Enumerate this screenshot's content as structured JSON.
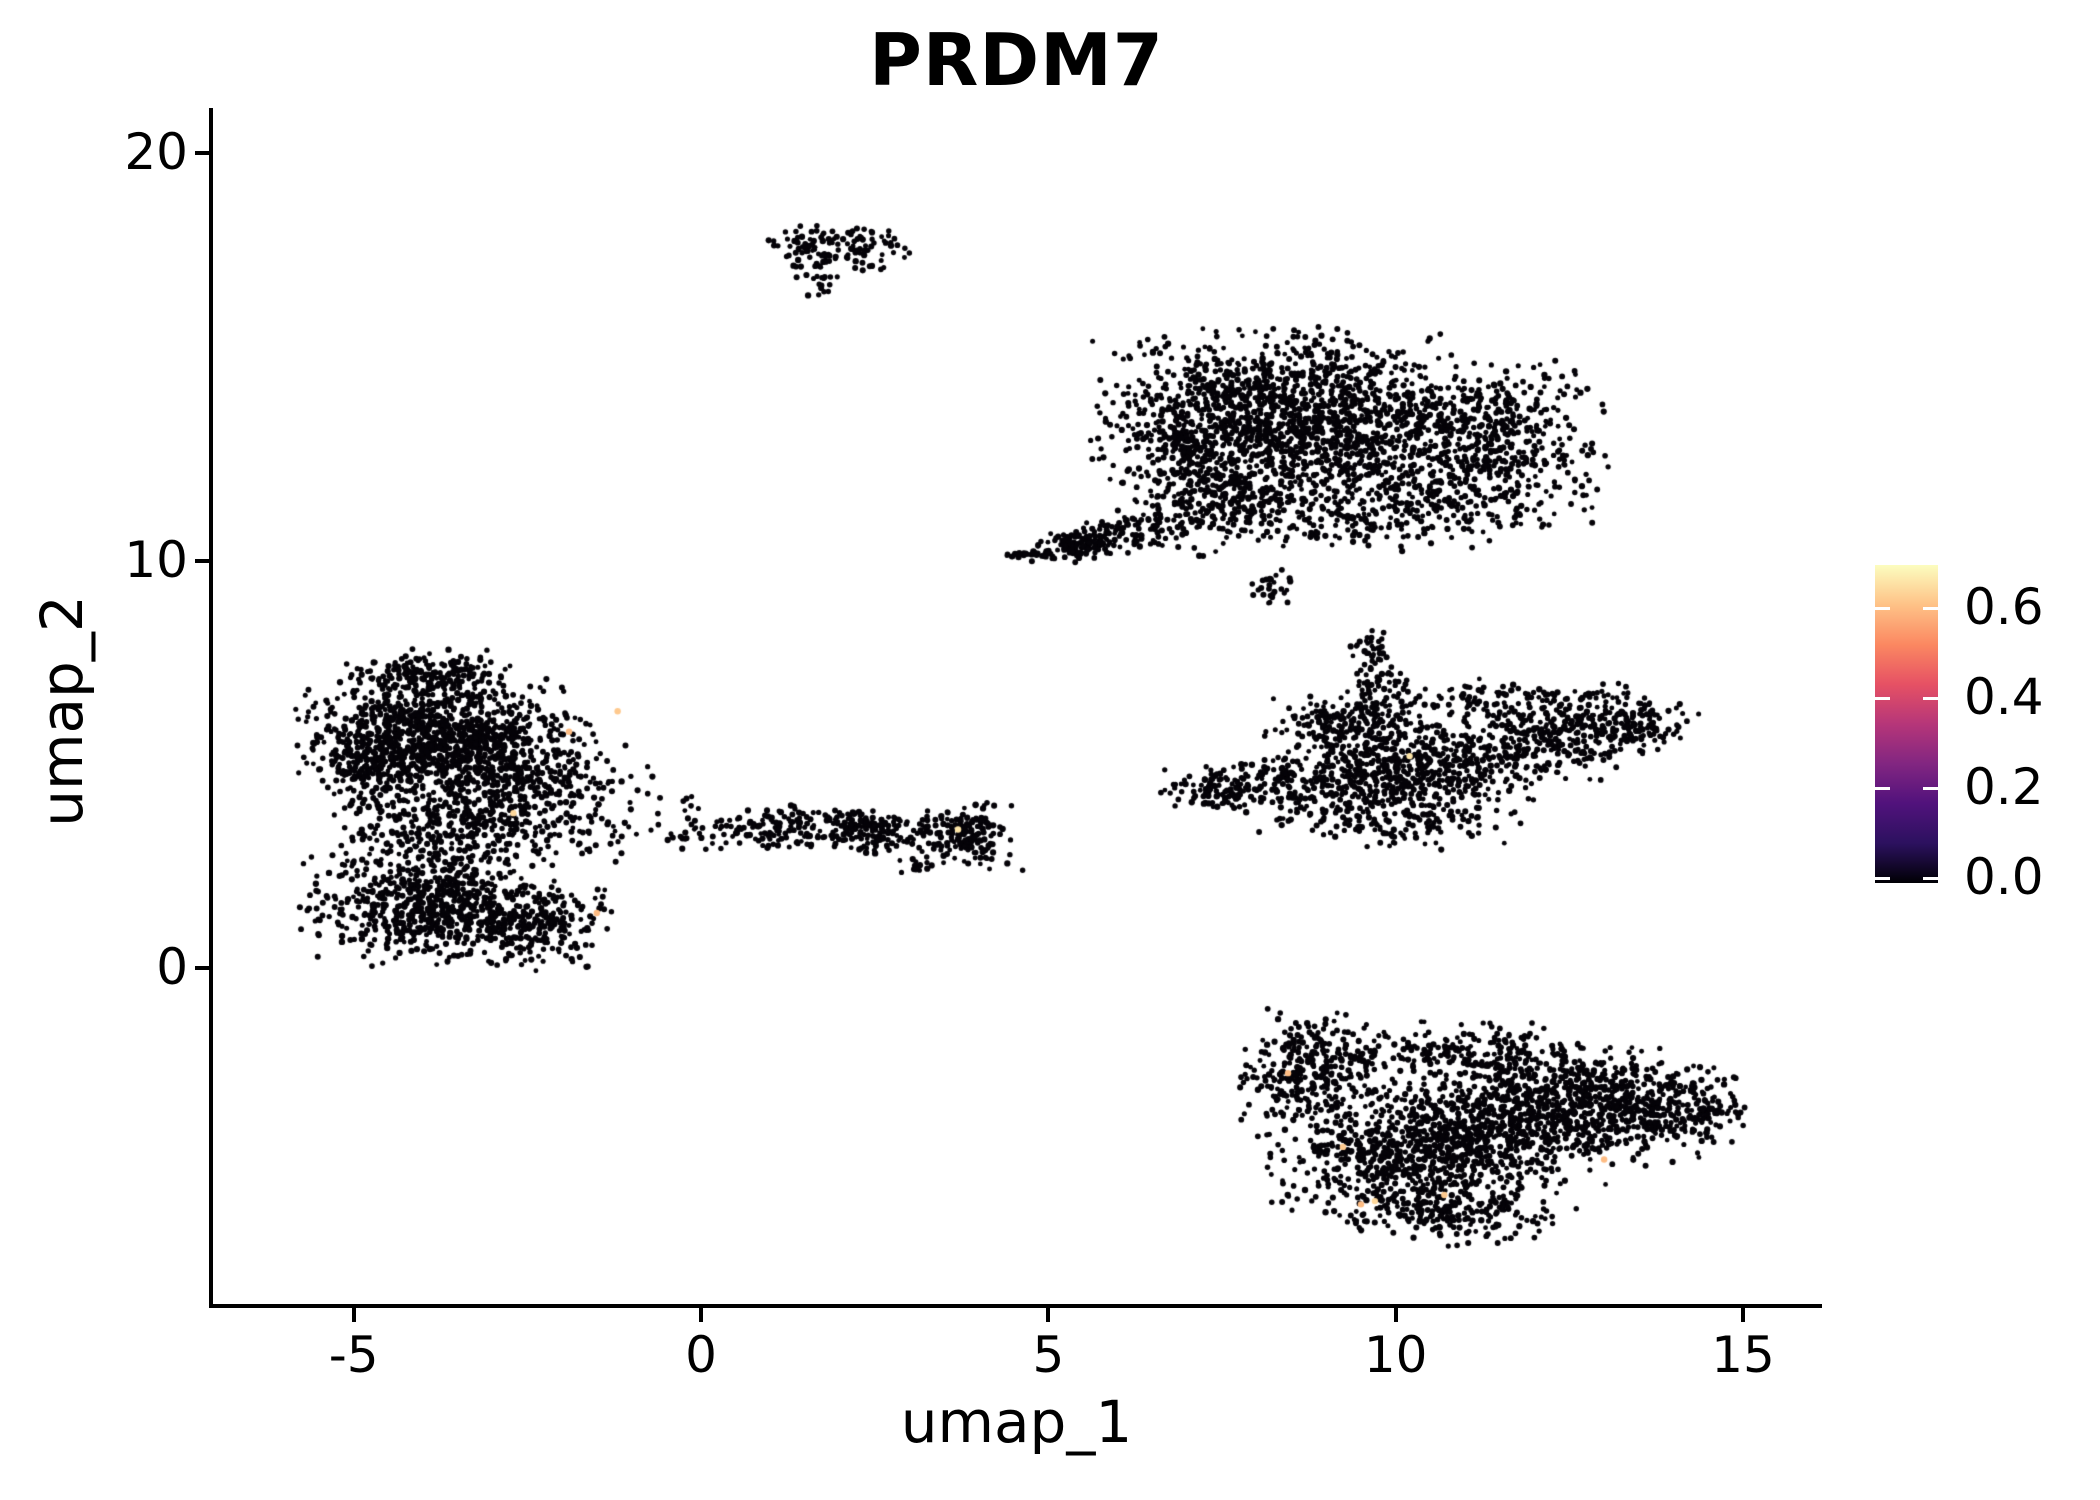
{
  "chart_data": {
    "type": "scatter",
    "title": "PRDM7",
    "xlabel": "umap_1",
    "ylabel": "umap_2",
    "xlim": [
      -7.1,
      16.1
    ],
    "ylim": [
      -8.3,
      21.1
    ],
    "grid": false,
    "x_ticks": [
      {
        "label": "-5",
        "value": -5
      },
      {
        "label": "0",
        "value": 0
      },
      {
        "label": "5",
        "value": 5
      },
      {
        "label": "10",
        "value": 10
      },
      {
        "label": "15",
        "value": 15
      }
    ],
    "y_ticks": [
      {
        "label": "0",
        "value": 0
      },
      {
        "label": "10",
        "value": 10
      },
      {
        "label": "20",
        "value": 20
      }
    ],
    "colorbar": {
      "position": "right",
      "value_range": [
        0,
        0.696
      ],
      "ticks": [
        {
          "label": "0.0",
          "value": 0.0
        },
        {
          "label": "0.2",
          "value": 0.2
        },
        {
          "label": "0.4",
          "value": 0.4
        },
        {
          "label": "0.6",
          "value": 0.6
        }
      ],
      "colormap": "magma",
      "stops": [
        {
          "pos": 0.0,
          "color": "#000004"
        },
        {
          "pos": 0.125,
          "color": "#2C115F"
        },
        {
          "pos": 0.25,
          "color": "#51127C"
        },
        {
          "pos": 0.375,
          "color": "#822681"
        },
        {
          "pos": 0.5,
          "color": "#B63679"
        },
        {
          "pos": 0.625,
          "color": "#E65164"
        },
        {
          "pos": 0.75,
          "color": "#FB8861"
        },
        {
          "pos": 0.875,
          "color": "#FEC287"
        },
        {
          "pos": 1.0,
          "color": "#FCFDBF"
        }
      ]
    },
    "point_color_zero": "#050308",
    "point_radius_px": 2.8,
    "clusters": [
      {
        "name": "top-small",
        "blobs": [
          {
            "x": 1.95,
            "y": 17.75,
            "sx": 0.5,
            "sy": 0.25,
            "rot": 0,
            "n": 110
          },
          {
            "x": 1.72,
            "y": 17.05,
            "sx": 0.18,
            "sy": 0.3,
            "rot": 0,
            "n": 30
          },
          {
            "x": 2.45,
            "y": 17.2,
            "sx": 0.15,
            "sy": 0.12,
            "rot": 0,
            "n": 8
          }
        ]
      },
      {
        "name": "top-right-large",
        "blobs": [
          {
            "x": 8.3,
            "y": 13.9,
            "sx": 1.2,
            "sy": 0.8,
            "rot": 0,
            "n": 850
          },
          {
            "x": 9.9,
            "y": 12.7,
            "sx": 1.4,
            "sy": 0.95,
            "rot": 0,
            "n": 850
          },
          {
            "x": 7.3,
            "y": 12.4,
            "sx": 0.75,
            "sy": 0.85,
            "rot": 0,
            "n": 400
          },
          {
            "x": 11.5,
            "y": 12.9,
            "sx": 0.65,
            "sy": 0.9,
            "rot": 0,
            "n": 260
          },
          {
            "x": 9.2,
            "y": 11.1,
            "sx": 1.4,
            "sy": 0.45,
            "rot": 0,
            "n": 230
          },
          {
            "x": 7.6,
            "y": 11.7,
            "sx": 0.5,
            "sy": 0.5,
            "rot": 0,
            "n": 60
          },
          {
            "x": 5.9,
            "y": 10.6,
            "sx": 0.6,
            "sy": 0.22,
            "rot": 18,
            "n": 140
          },
          {
            "x": 5.35,
            "y": 10.35,
            "sx": 0.22,
            "sy": 0.18,
            "rot": 0,
            "n": 60
          },
          {
            "x": 4.62,
            "y": 10.15,
            "sx": 0.18,
            "sy": 0.04,
            "rot": 0,
            "n": 22
          }
        ]
      },
      {
        "name": "tiny-mid",
        "blobs": [
          {
            "x": 8.2,
            "y": 9.35,
            "sx": 0.16,
            "sy": 0.2,
            "rot": 0,
            "n": 26
          }
        ]
      },
      {
        "name": "middle-right",
        "blobs": [
          {
            "x": 9.72,
            "y": 7.0,
            "sx": 0.2,
            "sy": 0.5,
            "rot": 0,
            "n": 65
          },
          {
            "x": 9.6,
            "y": 7.95,
            "sx": 0.13,
            "sy": 0.22,
            "rot": 0,
            "n": 14
          },
          {
            "x": 9.3,
            "y": 5.95,
            "sx": 0.5,
            "sy": 0.45,
            "rot": 0,
            "n": 170
          },
          {
            "x": 8.0,
            "y": 4.45,
            "sx": 0.62,
            "sy": 0.27,
            "rot": 8,
            "n": 160
          },
          {
            "x": 7.5,
            "y": 4.2,
            "sx": 0.25,
            "sy": 0.2,
            "rot": 0,
            "n": 25
          },
          {
            "x": 9.8,
            "y": 4.6,
            "sx": 0.85,
            "sy": 0.65,
            "rot": 0,
            "n": 480
          },
          {
            "x": 11.2,
            "y": 5.1,
            "sx": 0.95,
            "sy": 0.5,
            "rot": 10,
            "n": 330
          },
          {
            "x": 12.7,
            "y": 6.0,
            "sx": 0.75,
            "sy": 0.4,
            "rot": 12,
            "n": 240
          },
          {
            "x": 13.5,
            "y": 5.85,
            "sx": 0.3,
            "sy": 0.28,
            "rot": 0,
            "n": 70
          },
          {
            "x": 11.0,
            "y": 6.5,
            "sx": 0.8,
            "sy": 0.3,
            "rot": 0,
            "n": 110
          },
          {
            "x": 10.2,
            "y": 3.45,
            "sx": 0.7,
            "sy": 0.25,
            "rot": 0,
            "n": 55
          }
        ]
      },
      {
        "name": "left-large",
        "blobs": [
          {
            "x": -4.05,
            "y": 5.8,
            "sx": 0.8,
            "sy": 0.8,
            "rot": 0,
            "n": 850
          },
          {
            "x": -2.95,
            "y": 5.2,
            "sx": 0.65,
            "sy": 0.75,
            "rot": 0,
            "n": 480
          },
          {
            "x": -4.85,
            "y": 4.9,
            "sx": 0.28,
            "sy": 0.55,
            "rot": 0,
            "n": 140
          },
          {
            "x": -3.9,
            "y": 7.2,
            "sx": 0.5,
            "sy": 0.28,
            "rot": 0,
            "n": 130
          },
          {
            "x": -3.3,
            "y": 3.5,
            "sx": 0.95,
            "sy": 0.45,
            "rot": 0,
            "n": 330
          },
          {
            "x": -3.95,
            "y": 1.6,
            "sx": 0.8,
            "sy": 0.7,
            "rot": 0,
            "n": 650
          },
          {
            "x": -2.6,
            "y": 1.05,
            "sx": 0.65,
            "sy": 0.5,
            "rot": 0,
            "n": 300
          },
          {
            "x": -1.6,
            "y": 4.3,
            "sx": 0.6,
            "sy": 0.6,
            "rot": 0,
            "n": 70
          },
          {
            "x": -0.9,
            "y": 3.35,
            "sx": 0.45,
            "sy": 0.35,
            "rot": 0,
            "n": 22
          }
        ]
      },
      {
        "name": "middle-band",
        "blobs": [
          {
            "x": 0.55,
            "y": 3.35,
            "sx": 0.45,
            "sy": 0.22,
            "rot": 0,
            "n": 65
          },
          {
            "x": 1.55,
            "y": 3.45,
            "sx": 0.5,
            "sy": 0.25,
            "rot": 0,
            "n": 100
          },
          {
            "x": 2.45,
            "y": 3.35,
            "sx": 0.32,
            "sy": 0.28,
            "rot": 0,
            "n": 130
          },
          {
            "x": 3.7,
            "y": 3.3,
            "sx": 0.33,
            "sy": 0.33,
            "rot": 0,
            "n": 150
          },
          {
            "x": 3.8,
            "y": 3.1,
            "sx": 0.55,
            "sy": 0.45,
            "rot": 0,
            "n": 40
          },
          {
            "x": 3.2,
            "y": 2.5,
            "sx": 0.09,
            "sy": 0.1,
            "rot": 0,
            "n": 9
          },
          {
            "x": -0.12,
            "y": 3.9,
            "sx": 0.06,
            "sy": 0.18,
            "rot": 0,
            "n": 6
          }
        ]
      },
      {
        "name": "bottom-right",
        "blobs": [
          {
            "x": 8.8,
            "y": -2.7,
            "sx": 0.5,
            "sy": 0.75,
            "rot": 0,
            "n": 280
          },
          {
            "x": 10.3,
            "y": -4.6,
            "sx": 0.95,
            "sy": 0.85,
            "rot": 0,
            "n": 750
          },
          {
            "x": 11.6,
            "y": -3.6,
            "sx": 0.95,
            "sy": 0.75,
            "rot": 0,
            "n": 580
          },
          {
            "x": 13.1,
            "y": -3.3,
            "sx": 0.85,
            "sy": 0.65,
            "rot": -10,
            "n": 480
          },
          {
            "x": 14.15,
            "y": -3.5,
            "sx": 0.42,
            "sy": 0.42,
            "rot": 0,
            "n": 130
          },
          {
            "x": 11.0,
            "y": -2.05,
            "sx": 1.1,
            "sy": 0.32,
            "rot": 0,
            "n": 190
          },
          {
            "x": 10.9,
            "y": -6.05,
            "sx": 0.75,
            "sy": 0.35,
            "rot": 0,
            "n": 140
          }
        ]
      }
    ],
    "highlight_points": [
      {
        "x": -1.2,
        "y": 6.3,
        "value": 0.62
      },
      {
        "x": -1.9,
        "y": 5.8,
        "value": 0.6
      },
      {
        "x": -2.7,
        "y": 3.8,
        "value": 0.64
      },
      {
        "x": -1.5,
        "y": 1.35,
        "value": 0.6
      },
      {
        "x": 3.7,
        "y": 3.4,
        "value": 0.66
      },
      {
        "x": 10.2,
        "y": 5.2,
        "value": 0.66
      },
      {
        "x": 8.45,
        "y": -2.58,
        "value": 0.6
      },
      {
        "x": 9.24,
        "y": -4.39,
        "value": 0.62
      },
      {
        "x": 9.5,
        "y": -5.8,
        "value": 0.6
      },
      {
        "x": 9.7,
        "y": -5.72,
        "value": 0.64
      },
      {
        "x": 10.7,
        "y": -5.57,
        "value": 0.62
      },
      {
        "x": 13.0,
        "y": -4.7,
        "value": 0.6
      }
    ]
  }
}
